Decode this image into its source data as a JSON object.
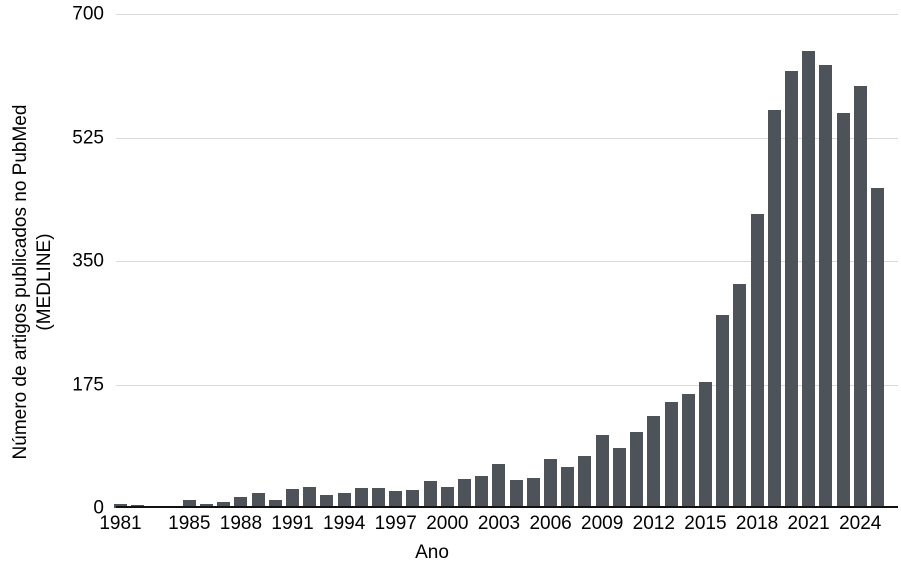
{
  "figure": {
    "y_axis_title_line1": "Número de artigos publicados no PubMed",
    "y_axis_title_line2": "(MEDLINE)",
    "x_axis_title": "Ano"
  },
  "chart_data": {
    "type": "bar",
    "title": "",
    "xlabel": "Ano",
    "ylabel": "Número de artigos publicados no PubMed (MEDLINE)",
    "x": [
      1981,
      1982,
      1983,
      1984,
      1985,
      1986,
      1987,
      1988,
      1989,
      1990,
      1991,
      1992,
      1993,
      1994,
      1995,
      1996,
      1997,
      1998,
      1999,
      2000,
      2001,
      2002,
      2003,
      2004,
      2005,
      2006,
      2007,
      2008,
      2009,
      2010,
      2011,
      2012,
      2013,
      2014,
      2015,
      2016,
      2017,
      2018,
      2019,
      2020,
      2021,
      2022,
      2023,
      2024,
      2025
    ],
    "values": [
      5,
      4,
      1,
      1,
      11,
      6,
      8,
      15,
      21,
      12,
      27,
      30,
      18,
      21,
      29,
      28,
      24,
      26,
      38,
      30,
      41,
      45,
      63,
      39,
      43,
      70,
      58,
      74,
      103,
      85,
      108,
      130,
      150,
      162,
      178,
      273,
      317,
      416,
      564,
      619,
      648,
      628,
      560,
      598,
      453
    ],
    "ylim": [
      0,
      700
    ],
    "yticks": [
      0,
      175,
      350,
      525,
      700
    ],
    "xticks": [
      1981,
      1985,
      1988,
      1991,
      1994,
      1997,
      2000,
      2003,
      2006,
      2009,
      2012,
      2015,
      2018,
      2021,
      2024
    ],
    "bar_color": "#4d5359",
    "grid_color": "#d9d9d9",
    "axis_color": "#111111",
    "grid": "horizontal",
    "legend_position": "none"
  }
}
